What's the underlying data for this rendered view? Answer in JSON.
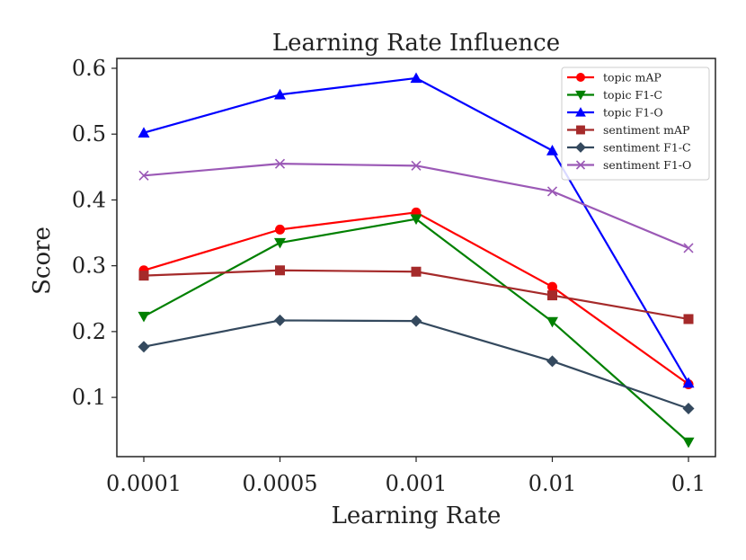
{
  "chart_data": {
    "type": "line",
    "title": "Learning Rate Influence",
    "xlabel": "Learning Rate",
    "ylabel": "Score",
    "categories": [
      "0.0001",
      "0.0005",
      "0.001",
      "0.01",
      "0.1"
    ],
    "ylim": [
      0.01,
      0.615
    ],
    "yticks": [
      0.1,
      0.2,
      0.3,
      0.4,
      0.5,
      0.6
    ],
    "ytick_labels": [
      "0.1",
      "0.2",
      "0.3",
      "0.4",
      "0.5",
      "0.6"
    ],
    "legend_position": "top-right",
    "grid": false,
    "series": [
      {
        "name": "topic mAP",
        "color": "#ff0000",
        "marker": "circle",
        "values": [
          0.293,
          0.355,
          0.381,
          0.268,
          0.12
        ]
      },
      {
        "name": "topic F1-C",
        "color": "#008000",
        "marker": "triangle-down",
        "values": [
          0.223,
          0.335,
          0.371,
          0.215,
          0.032
        ]
      },
      {
        "name": "topic F1-O",
        "color": "#0000ff",
        "marker": "triangle-up",
        "values": [
          0.502,
          0.56,
          0.585,
          0.475,
          0.122
        ]
      },
      {
        "name": "sentiment mAP",
        "color": "#a52a2a",
        "marker": "square",
        "values": [
          0.285,
          0.293,
          0.291,
          0.255,
          0.219
        ]
      },
      {
        "name": "sentiment F1-C",
        "color": "#34495e",
        "marker": "diamond",
        "values": [
          0.177,
          0.217,
          0.216,
          0.155,
          0.083
        ]
      },
      {
        "name": "sentiment F1-O",
        "color": "#9b59b6",
        "marker": "x",
        "values": [
          0.437,
          0.455,
          0.452,
          0.413,
          0.327
        ]
      }
    ]
  }
}
